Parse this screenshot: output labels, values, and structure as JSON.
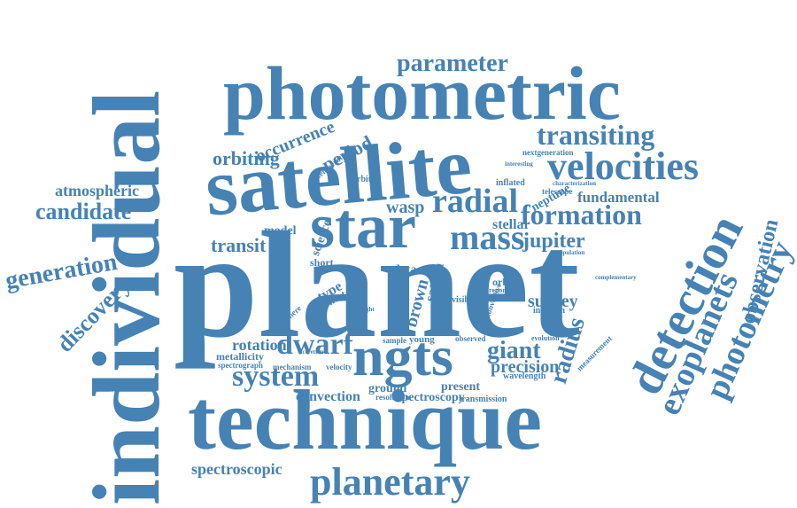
{
  "cloud": {
    "color": "#4682b4",
    "words": [
      "planet",
      "individual",
      "technique",
      "satellite",
      "photometric",
      "star",
      "ngts",
      "detection",
      "velocities",
      "exoplanets",
      "photometry",
      "planetary",
      "radial",
      "mass",
      "formation",
      "parameter",
      "transiting",
      "system",
      "dwarf",
      "observation",
      "radius",
      "jupiter",
      "orbiting",
      "period",
      "occurrence",
      "candidate",
      "atmospheric",
      "generation",
      "discovery",
      "transit",
      "giant",
      "survey",
      "precision",
      "spectroscopic",
      "fundamental",
      "wasp",
      "stellar",
      "neptune",
      "brown",
      "saturn",
      "rotation",
      "metallicity",
      "convection",
      "spectroscopy",
      "present",
      "ground",
      "model",
      "short",
      "host",
      "data",
      "type",
      "orbit",
      "telescope",
      "inflated",
      "nextgeneration",
      "orbital",
      "science",
      "temperature",
      "atmosphere",
      "spectrograph",
      "mechanism",
      "velocity",
      "resolution",
      "transmission",
      "wavelength",
      "measurement",
      "young",
      "sample",
      "observed",
      "evolution",
      "visible",
      "convective",
      "inflation",
      "complementary",
      "population",
      "characterization",
      "interesting",
      "report",
      "bright",
      "accretion"
    ]
  }
}
